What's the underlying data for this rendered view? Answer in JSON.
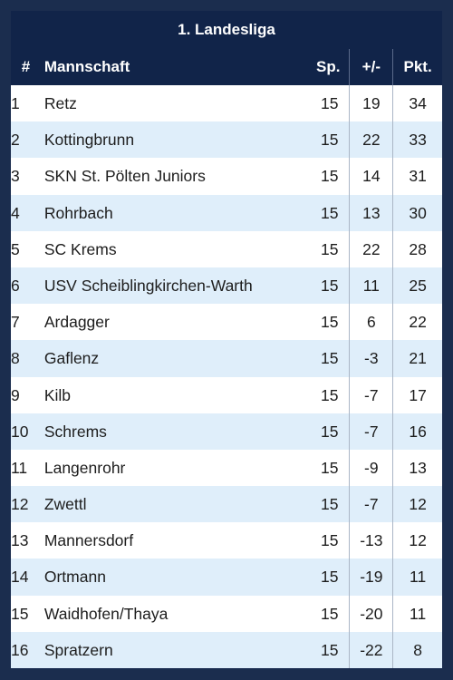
{
  "table": {
    "title": "1. Landesliga",
    "headers": {
      "pos": "#",
      "team": "Mannschaft",
      "games": "Sp.",
      "diff": "+/-",
      "points": "Pkt."
    },
    "rows": [
      {
        "pos": "1",
        "team": "Retz",
        "games": "15",
        "diff": "19",
        "points": "34"
      },
      {
        "pos": "2",
        "team": "Kottingbrunn",
        "games": "15",
        "diff": "22",
        "points": "33"
      },
      {
        "pos": "3",
        "team": "SKN St. Pölten Juniors",
        "games": "15",
        "diff": "14",
        "points": "31"
      },
      {
        "pos": "4",
        "team": "Rohrbach",
        "games": "15",
        "diff": "13",
        "points": "30"
      },
      {
        "pos": "5",
        "team": "SC Krems",
        "games": "15",
        "diff": "22",
        "points": "28"
      },
      {
        "pos": "6",
        "team": "USV Scheiblingkirchen-Warth",
        "games": "15",
        "diff": "11",
        "points": "25"
      },
      {
        "pos": "7",
        "team": "Ardagger",
        "games": "15",
        "diff": "6",
        "points": "22"
      },
      {
        "pos": "8",
        "team": "Gaflenz",
        "games": "15",
        "diff": "-3",
        "points": "21"
      },
      {
        "pos": "9",
        "team": "Kilb",
        "games": "15",
        "diff": "-7",
        "points": "17"
      },
      {
        "pos": "10",
        "team": "Schrems",
        "games": "15",
        "diff": "-7",
        "points": "16"
      },
      {
        "pos": "11",
        "team": "Langenrohr",
        "games": "15",
        "diff": "-9",
        "points": "13"
      },
      {
        "pos": "12",
        "team": "Zwettl",
        "games": "15",
        "diff": "-7",
        "points": "12"
      },
      {
        "pos": "13",
        "team": "Mannersdorf",
        "games": "15",
        "diff": "-13",
        "points": "12"
      },
      {
        "pos": "14",
        "team": "Ortmann",
        "games": "15",
        "diff": "-19",
        "points": "11"
      },
      {
        "pos": "15",
        "team": "Waidhofen/Thaya",
        "games": "15",
        "diff": "-20",
        "points": "11"
      },
      {
        "pos": "16",
        "team": "Spratzern",
        "games": "15",
        "diff": "-22",
        "points": "8"
      }
    ]
  },
  "colors": {
    "header_bg": "#112449",
    "row_alt": "#dfeefa",
    "row": "#ffffff"
  }
}
